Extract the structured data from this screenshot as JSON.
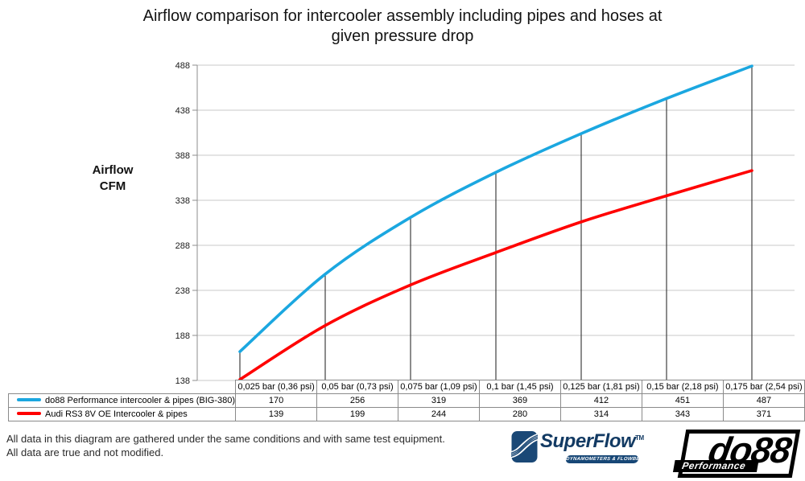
{
  "title": "Airflow comparison for intercooler assembly including pipes and hoses at\ngiven pressure drop",
  "y_axis_label": "Airflow\nCFM",
  "chart_data": {
    "type": "line",
    "title": "Airflow comparison for intercooler assembly including pipes and hoses at given pressure drop",
    "ylabel": "Airflow CFM",
    "xlabel": "",
    "categories": [
      "0,025 bar (0,36 psi)",
      "0,05 bar (0,73 psi)",
      "0,075 bar (1,09 psi)",
      "0,1 bar (1,45 psi)",
      "0,125 bar (1,81 psi)",
      "0,15 bar (2,18 psi)",
      "0,175 bar (2,54 psi)"
    ],
    "series": [
      {
        "name": "do88 Performance intercooler & pipes (BIG-380)",
        "color": "#1BA7E0",
        "values": [
          170,
          256,
          319,
          369,
          412,
          451,
          487
        ]
      },
      {
        "name": "Audi RS3 8V OE Intercooler & pipes",
        "color": "#FF0000",
        "values": [
          139,
          199,
          244,
          280,
          314,
          343,
          371
        ]
      }
    ],
    "ylim": [
      138,
      488
    ],
    "y_ticks": [
      138,
      188,
      238,
      288,
      338,
      388,
      438,
      488
    ],
    "grid": "horizontal",
    "drop_lines_to_series": 0,
    "legend_position": "table-left"
  },
  "footer": {
    "line1": "All data in this diagram are gathered under the same conditions and with same test equipment.",
    "line2": "All data are true and not modified."
  },
  "logos": {
    "superflow": {
      "brand": "SuperFlow",
      "trademark": "TM",
      "tagline": "DYNAMOMETERS & FLOWBENCHES",
      "color": "#174776"
    },
    "do88": {
      "brand": "do88",
      "tagline": "Performance",
      "color": "#000000"
    }
  },
  "colors": {
    "grid": "#C9C9C9",
    "axis": "#8C8C8C",
    "drop_line": "#3F3F3F",
    "table_border": "#8A8A8A"
  }
}
